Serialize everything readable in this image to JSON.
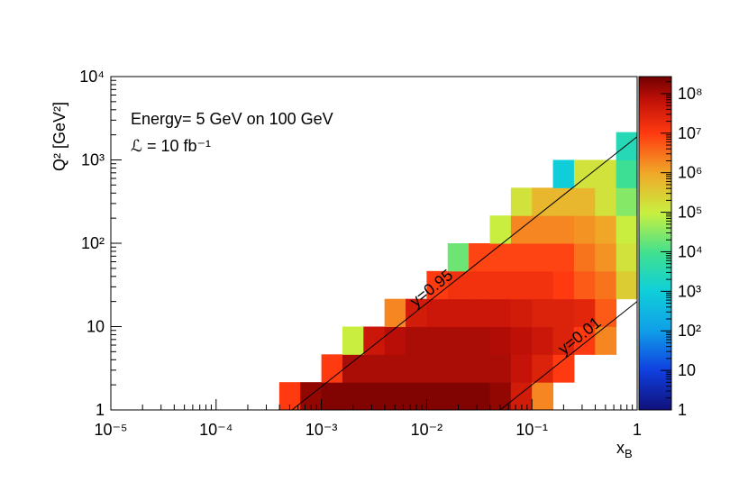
{
  "chart_data": {
    "type": "heatmap",
    "x_label": "xB",
    "y_label": "Q² [GeV²]",
    "annotations": [
      "Energy= 5 GeV on 100 GeV",
      "ℒ = 10 fb⁻¹"
    ],
    "xlog": true,
    "ylog": true,
    "zlog": true,
    "xlim": [
      1e-05,
      1
    ],
    "ylim": [
      1,
      10000
    ],
    "zlim": [
      1,
      270000000
    ],
    "xticks": [
      {
        "value": 1e-05,
        "label": "10⁻⁵"
      },
      {
        "value": 0.0001,
        "label": "10⁻⁴"
      },
      {
        "value": 0.001,
        "label": "10⁻³"
      },
      {
        "value": 0.01,
        "label": "10⁻²"
      },
      {
        "value": 0.1,
        "label": "10⁻¹"
      },
      1
    ],
    "yticks": [
      1,
      10,
      {
        "value": 100,
        "label": "10²"
      },
      {
        "value": 1000,
        "label": "10³"
      },
      {
        "value": 10000,
        "label": "10⁴"
      }
    ],
    "zticks": [
      1,
      10,
      {
        "value": 100,
        "label": "10²"
      },
      {
        "value": 1000,
        "label": "10³"
      },
      {
        "value": 10000,
        "label": "10⁴"
      },
      {
        "value": 100000,
        "label": "10⁵"
      },
      {
        "value": 1000000,
        "label": "10⁶"
      },
      {
        "value": 10000000,
        "label": "10⁷"
      },
      {
        "value": 100000000,
        "label": "10⁸"
      }
    ],
    "minor_ticks": true,
    "colormap": [
      [
        0,
        "#10107a"
      ],
      [
        0.12,
        "#1040e0"
      ],
      [
        0.24,
        "#10a0e8"
      ],
      [
        0.36,
        "#10d0d8"
      ],
      [
        0.47,
        "#40e090"
      ],
      [
        0.59,
        "#c8f040"
      ],
      [
        0.71,
        "#f0a828"
      ],
      [
        0.83,
        "#ff3a10"
      ],
      [
        0.93,
        "#c01008"
      ],
      [
        1,
        "#700000"
      ]
    ],
    "xbins": [
      0.000398,
      0.000631,
      0.001,
      0.001585,
      0.002512,
      0.003981,
      0.00631,
      0.01,
      0.01585,
      0.02512,
      0.03981,
      0.0631,
      0.1,
      0.1585,
      0.2512,
      0.3981,
      0.631,
      1
    ],
    "ybins": [
      1,
      2.154,
      4.642,
      10,
      21.54,
      46.42,
      100,
      215.4,
      464.2,
      1000,
      2154
    ],
    "z": [
      [
        10000000,
        150000000,
        200000000,
        200000000,
        200000000,
        200000000,
        200000000,
        200000000,
        200000000,
        200000000,
        150000000,
        40000000,
        2000000,
        null,
        null,
        null,
        null
      ],
      [
        null,
        null,
        10000000,
        100000000,
        100000000,
        100000000,
        100000000,
        100000000,
        100000000,
        100000000,
        100000000,
        60000000,
        30000000,
        10000000,
        null,
        null,
        null
      ],
      [
        null,
        null,
        null,
        100000,
        50000000,
        80000000,
        100000000,
        100000000,
        100000000,
        100000000,
        90000000,
        70000000,
        50000000,
        30000000,
        10000000,
        2000000,
        null
      ],
      [
        null,
        null,
        null,
        null,
        null,
        2000000,
        40000000,
        50000000,
        50000000,
        50000000,
        50000000,
        40000000,
        30000000,
        30000000,
        25000000,
        5000000,
        null
      ],
      [
        null,
        null,
        null,
        null,
        null,
        null,
        null,
        10000000,
        15000000,
        15000000,
        15000000,
        15000000,
        15000000,
        10000000,
        5000000,
        3000000,
        300000
      ],
      [
        null,
        null,
        null,
        null,
        null,
        null,
        null,
        null,
        20000,
        8000000,
        8000000,
        8000000,
        8000000,
        8000000,
        3000000,
        1500000,
        150000
      ],
      [
        null,
        null,
        null,
        null,
        null,
        null,
        null,
        null,
        null,
        null,
        100000,
        2000000,
        2000000,
        2000000,
        1500000,
        1000000,
        100000
      ],
      [
        null,
        null,
        null,
        null,
        null,
        null,
        null,
        null,
        null,
        null,
        null,
        150000,
        600000,
        600000,
        600000,
        150000,
        30000
      ],
      [
        null,
        null,
        null,
        null,
        null,
        null,
        null,
        null,
        null,
        null,
        null,
        null,
        null,
        1000,
        150000,
        150000,
        8000
      ],
      [
        null,
        null,
        null,
        null,
        null,
        null,
        null,
        null,
        null,
        null,
        null,
        null,
        null,
        null,
        null,
        null,
        3000
      ]
    ],
    "lines": [
      {
        "label": "y=0.95",
        "x": [
          0.000526,
          1
        ],
        "y": [
          1,
          1900
        ]
      },
      {
        "label": "y=0.01",
        "x": [
          0.05,
          1
        ],
        "y": [
          1,
          20
        ]
      }
    ]
  }
}
